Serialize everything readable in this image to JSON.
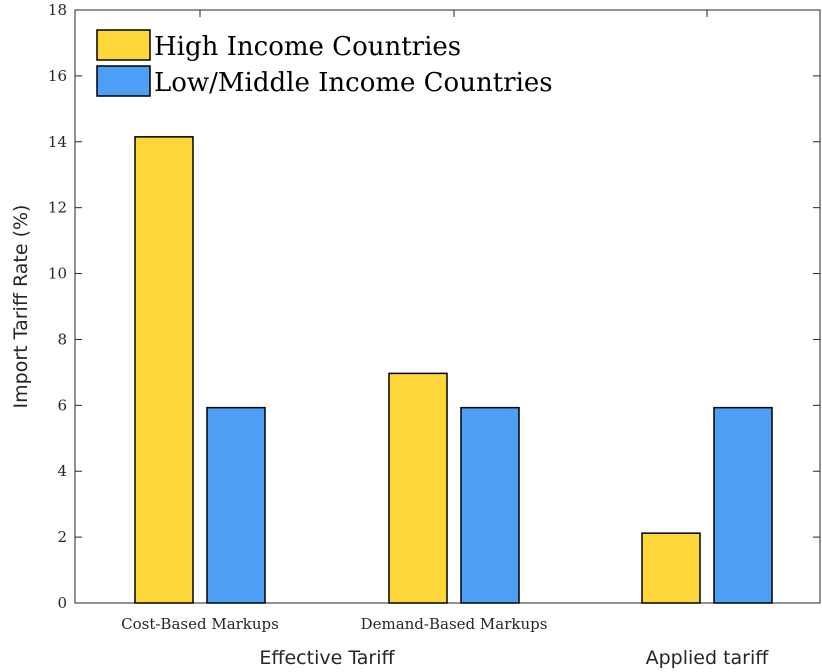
{
  "chart_data": {
    "type": "bar",
    "categories": [
      "Cost-Based Markups",
      "Demand-Based Markups",
      ""
    ],
    "group_labels": [
      "Effective Tariff",
      "Applied tariff"
    ],
    "series": [
      {
        "name": "High Income Countries",
        "color": "#fdd63a",
        "values": [
          14.15,
          6.97,
          2.12
        ]
      },
      {
        "name": "Low/Middle Income Countries",
        "color": "#4d9ff5",
        "values": [
          5.93,
          5.93,
          5.93
        ]
      }
    ],
    "xlabel": "",
    "ylabel": "Import Tariff Rate (%)",
    "ylim": [
      0,
      18
    ],
    "yticks": [
      0,
      2,
      4,
      6,
      8,
      10,
      12,
      14,
      16,
      18
    ],
    "grid": false,
    "legend_position": "top-left"
  }
}
